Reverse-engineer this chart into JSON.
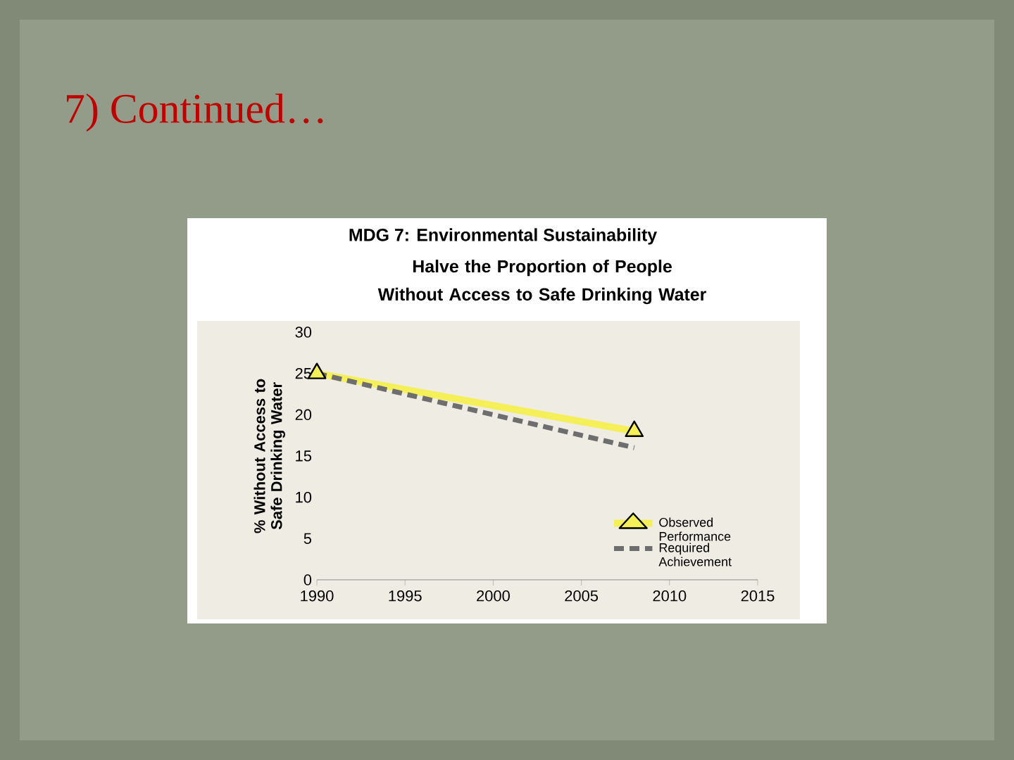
{
  "chart_data": {
    "type": "line",
    "title": "MDG 7: Environmental Sustainability",
    "subtitle": "Halve the Proportion of People Without Access to Safe Drinking Water",
    "ylabel": "% Without Access to Safe Drinking Water",
    "annotations": [
      "7) Continued…"
    ],
    "x": [
      1990,
      2008
    ],
    "series": [
      {
        "name": "Observed Performance",
        "color": "#f5f05a",
        "values": [
          25,
          18
        ],
        "marker": "triangle",
        "line_style": "solid"
      },
      {
        "name": "Required Achievement",
        "color": "#6e6e6e",
        "values": [
          25,
          16
        ],
        "marker": "none",
        "line_style": "dashed"
      }
    ],
    "xlim": [
      1990,
      2015
    ],
    "xticks": [
      1990,
      1995,
      2000,
      2005,
      2010,
      2015
    ],
    "ylim": [
      0,
      30
    ],
    "yticks": [
      0,
      5,
      10,
      15,
      20,
      25,
      30
    ],
    "grid": false,
    "legend": "bottom right"
  }
}
